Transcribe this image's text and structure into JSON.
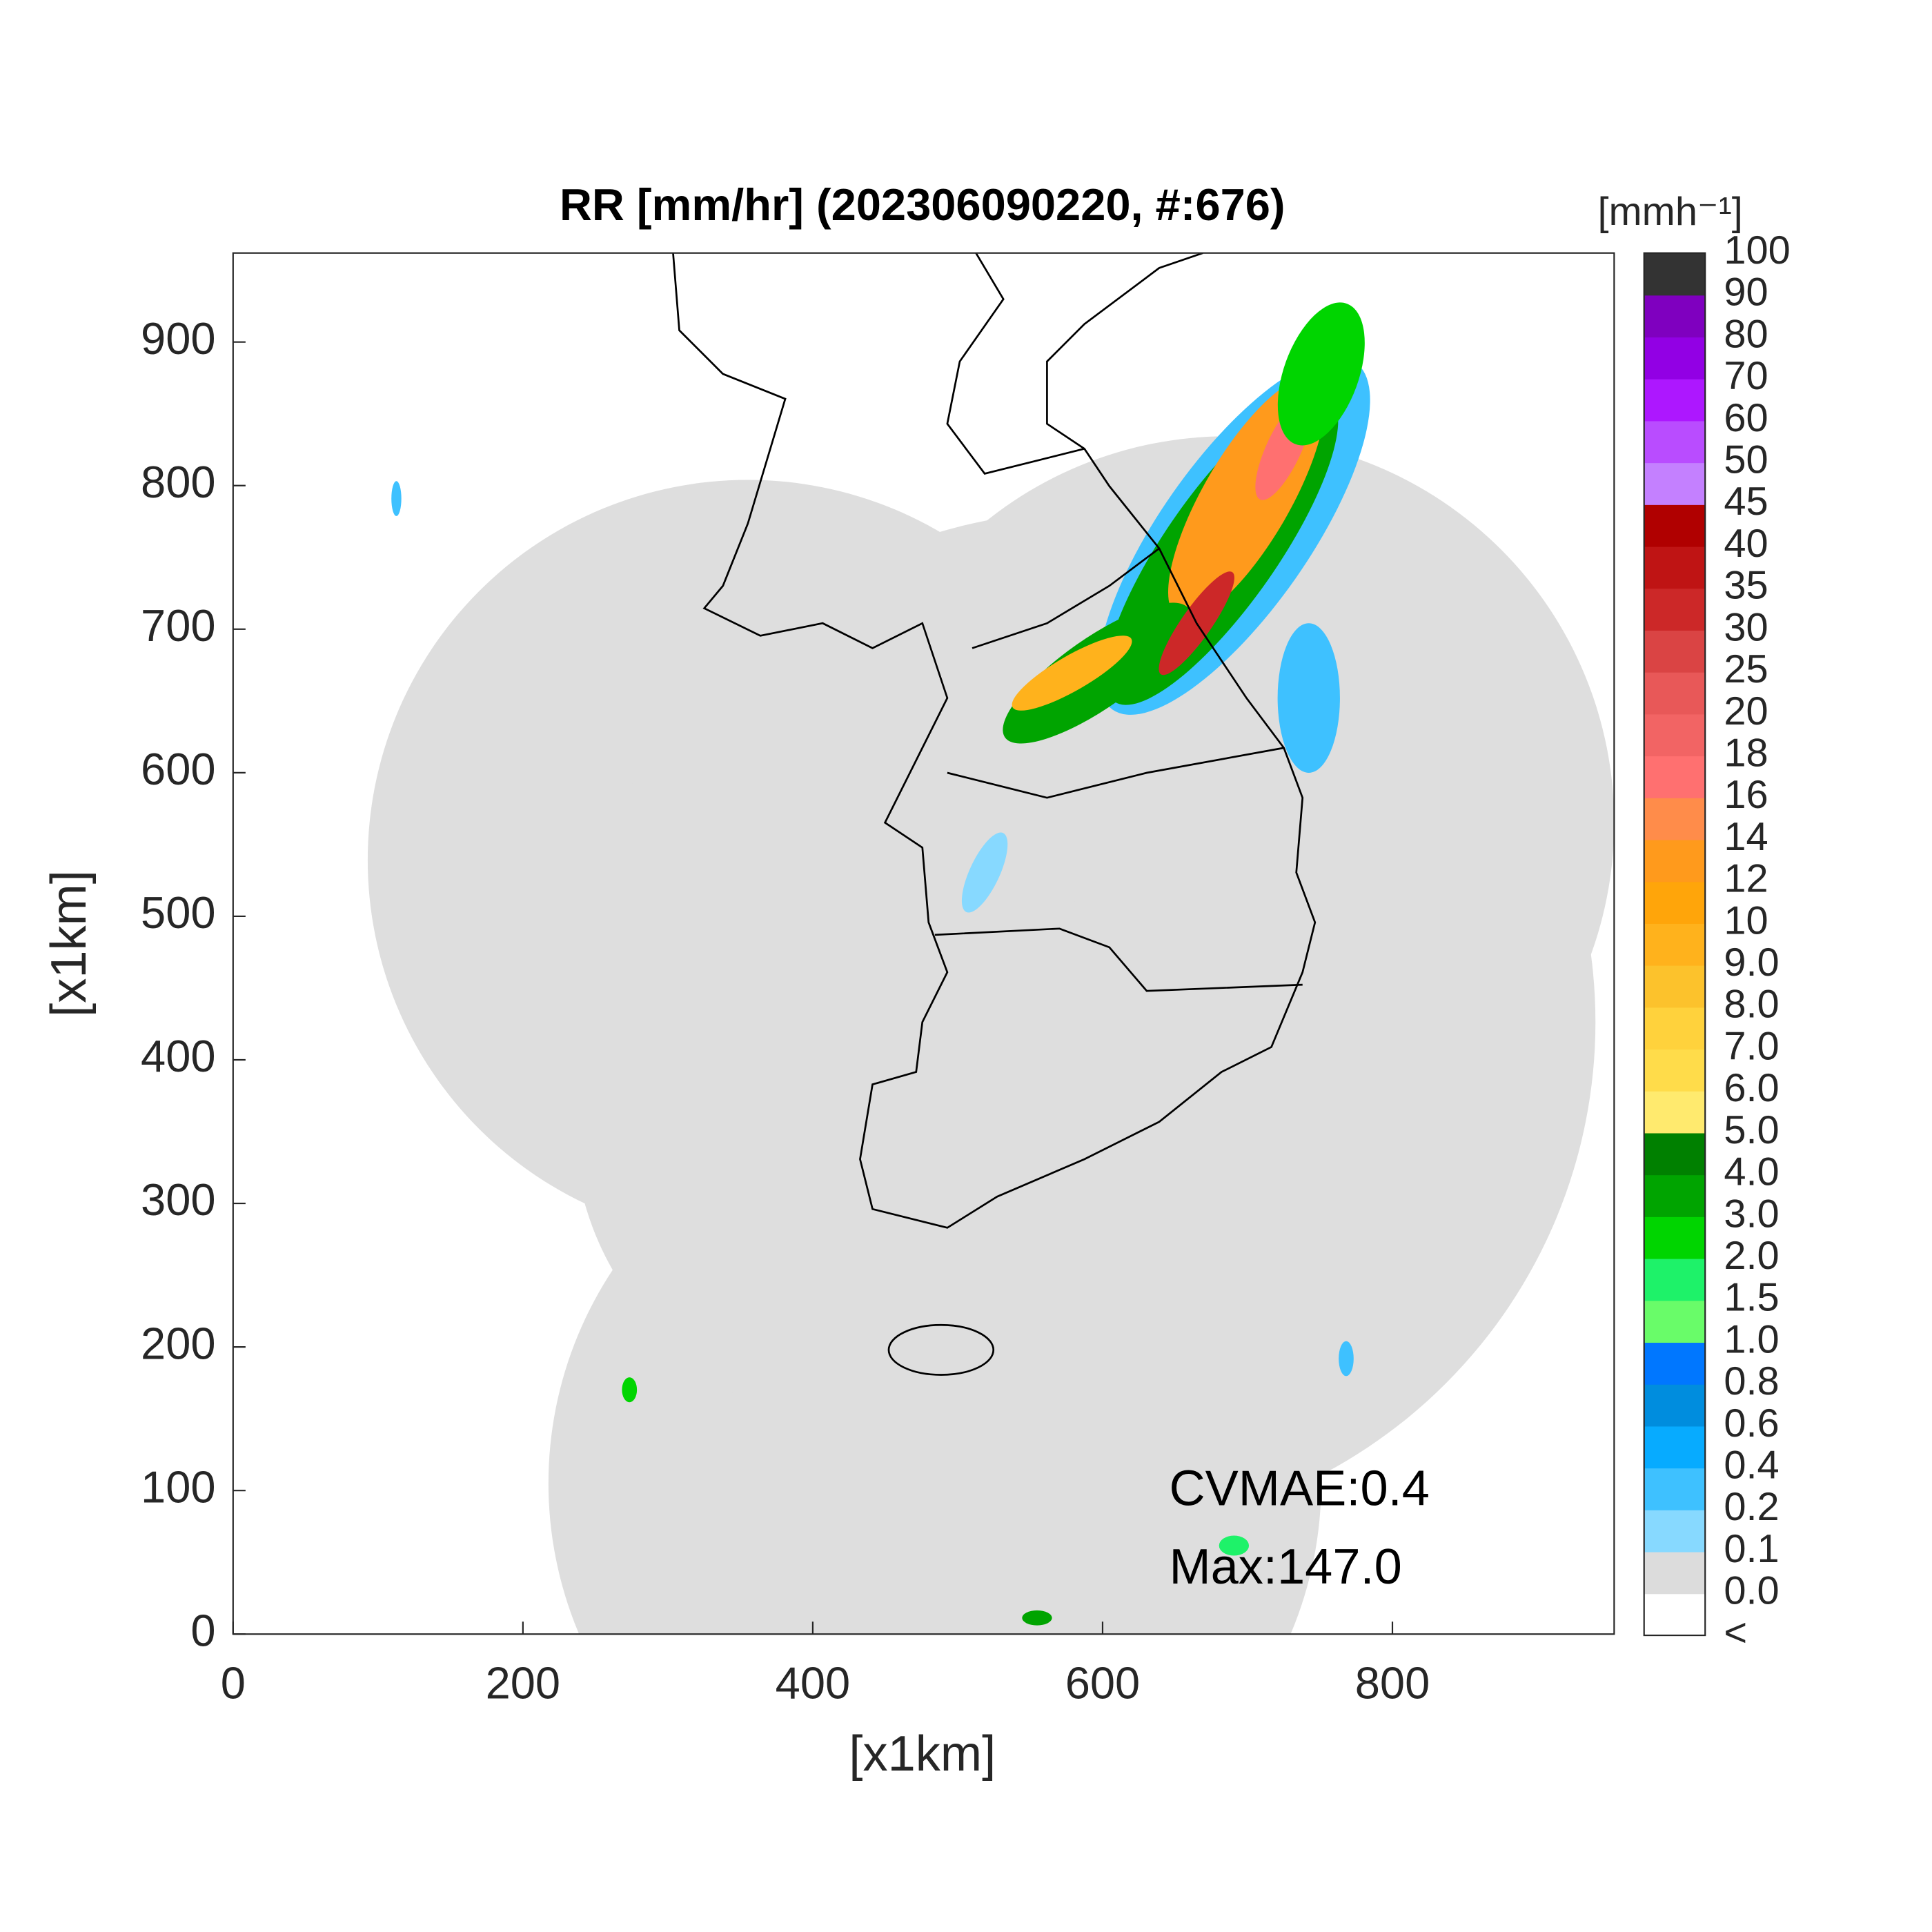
{
  "chart_data": {
    "type": "map",
    "title": "RR [mm/hr] (202306090220, #:676)",
    "xlabel": "[x1km]",
    "ylabel": "[x1km]",
    "xlim": [
      0,
      953
    ],
    "ylim": [
      0,
      962
    ],
    "xticks": [
      0,
      200,
      400,
      600,
      800
    ],
    "yticks": [
      0,
      100,
      200,
      300,
      400,
      500,
      600,
      700,
      800,
      900
    ],
    "annotations": [
      "CVMAE:0.4",
      "Max:147.0"
    ],
    "colorbar": {
      "label": "[mmh⁻¹]",
      "labels": [
        "<",
        "0.0",
        "0.1",
        "0.2",
        "0.4",
        "0.6",
        "0.8",
        "1.0",
        "1.5",
        "2.0",
        "3.0",
        "4.0",
        "5.0",
        "6.0",
        "7.0",
        "8.0",
        "9.0",
        "10",
        "12",
        "14",
        "16",
        "18",
        "20",
        "25",
        "30",
        "35",
        "40",
        "45",
        "50",
        "60",
        "70",
        "80",
        "90",
        "100"
      ],
      "colors": [
        "#ffffff",
        "#dcdcdc",
        "#87d9ff",
        "#3ec1ff",
        "#07abff",
        "#008dde",
        "#0077ff",
        "#69fc69",
        "#1ef269",
        "#00d500",
        "#00a400",
        "#008000",
        "#ffea6e",
        "#ffdc4a",
        "#ffd23c",
        "#fcc22c",
        "#ffb21c",
        "#ffa50a",
        "#ff9a1c",
        "#ff8c4a",
        "#ff7070",
        "#f26464",
        "#e85858",
        "#da4444",
        "#cc2828",
        "#bf1414",
        "#b00000",
        "#c480ff",
        "#b94cff",
        "#ad17ff",
        "#9200e4",
        "#7f00bf",
        "#333333"
      ]
    }
  }
}
